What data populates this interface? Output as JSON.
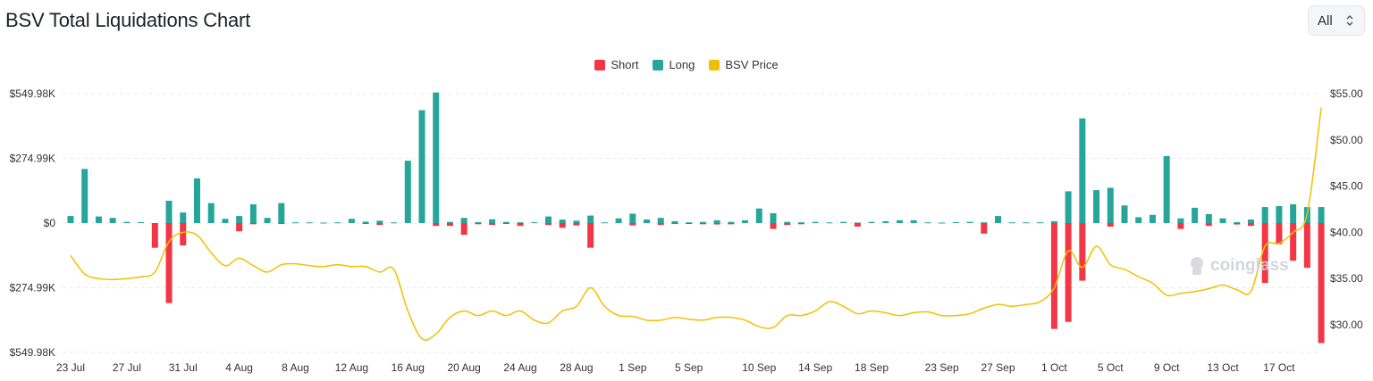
{
  "header": {
    "title": "BSV Total Liquidations Chart",
    "range_value": "All"
  },
  "legend": [
    {
      "label": "Short",
      "color": "#f23645"
    },
    {
      "label": "Long",
      "color": "#26a69a"
    },
    {
      "label": "BSV Price",
      "color": "#f0c000"
    }
  ],
  "watermark": "coinglass",
  "chart_data": {
    "type": "bar",
    "title": "BSV Total Liquidations Chart",
    "y_left": {
      "ticks": [
        "$549.98K",
        "$274.99K",
        "$0",
        "$274.99K",
        "$549.98K"
      ],
      "ylim": [
        -549980,
        549980
      ]
    },
    "y_right": {
      "ticks": [
        "$55.00",
        "$50.00",
        "$45.00",
        "$40.00",
        "$35.00",
        "$30.00"
      ],
      "ylim": [
        27,
        55
      ]
    },
    "x_ticks": [
      {
        "label": "23 Jul",
        "day": 0
      },
      {
        "label": "27 Jul",
        "day": 4
      },
      {
        "label": "31 Jul",
        "day": 8
      },
      {
        "label": "4 Aug",
        "day": 12
      },
      {
        "label": "8 Aug",
        "day": 16
      },
      {
        "label": "12 Aug",
        "day": 20
      },
      {
        "label": "16 Aug",
        "day": 24
      },
      {
        "label": "20 Aug",
        "day": 28
      },
      {
        "label": "24 Aug",
        "day": 32
      },
      {
        "label": "28 Aug",
        "day": 36
      },
      {
        "label": "1 Sep",
        "day": 40
      },
      {
        "label": "5 Sep",
        "day": 44
      },
      {
        "label": "10 Sep",
        "day": 49
      },
      {
        "label": "14 Sep",
        "day": 53
      },
      {
        "label": "18 Sep",
        "day": 57
      },
      {
        "label": "23 Sep",
        "day": 62
      },
      {
        "label": "27 Sep",
        "day": 66
      },
      {
        "label": "1 Oct",
        "day": 70
      },
      {
        "label": "5 Oct",
        "day": 74
      },
      {
        "label": "9 Oct",
        "day": 78
      },
      {
        "label": "13 Oct",
        "day": 82
      },
      {
        "label": "17 Oct",
        "day": 86
      }
    ],
    "series": [
      {
        "name": "Long",
        "color": "#26a69a",
        "points": [
          [
            0,
            30000
          ],
          [
            1,
            230000
          ],
          [
            2,
            28000
          ],
          [
            3,
            22000
          ],
          [
            4,
            5000
          ],
          [
            5,
            4000
          ],
          [
            6,
            0
          ],
          [
            7,
            95000
          ],
          [
            8,
            45000
          ],
          [
            9,
            190000
          ],
          [
            10,
            85000
          ],
          [
            11,
            18000
          ],
          [
            12,
            30000
          ],
          [
            13,
            80000
          ],
          [
            14,
            22000
          ],
          [
            15,
            85000
          ],
          [
            16,
            3000
          ],
          [
            17,
            3000
          ],
          [
            18,
            2000
          ],
          [
            19,
            3000
          ],
          [
            20,
            18000
          ],
          [
            21,
            6000
          ],
          [
            22,
            10000
          ],
          [
            23,
            3000
          ],
          [
            24,
            265000
          ],
          [
            25,
            480000
          ],
          [
            26,
            555000
          ],
          [
            27,
            5000
          ],
          [
            28,
            22000
          ],
          [
            29,
            4000
          ],
          [
            30,
            16000
          ],
          [
            31,
            5000
          ],
          [
            32,
            3000
          ],
          [
            33,
            4000
          ],
          [
            34,
            28000
          ],
          [
            35,
            15000
          ],
          [
            36,
            10000
          ],
          [
            37,
            32000
          ],
          [
            38,
            3000
          ],
          [
            39,
            20000
          ],
          [
            40,
            40000
          ],
          [
            41,
            15000
          ],
          [
            42,
            22000
          ],
          [
            43,
            8000
          ],
          [
            44,
            3000
          ],
          [
            45,
            5000
          ],
          [
            46,
            12000
          ],
          [
            47,
            5000
          ],
          [
            48,
            12000
          ],
          [
            49,
            62000
          ],
          [
            50,
            42000
          ],
          [
            51,
            5000
          ],
          [
            52,
            3000
          ],
          [
            53,
            5000
          ],
          [
            54,
            3000
          ],
          [
            55,
            5000
          ],
          [
            56,
            2000
          ],
          [
            57,
            5000
          ],
          [
            58,
            8000
          ],
          [
            59,
            12000
          ],
          [
            60,
            12000
          ],
          [
            61,
            3000
          ],
          [
            62,
            2000
          ],
          [
            63,
            4000
          ],
          [
            64,
            5000
          ],
          [
            65,
            3000
          ],
          [
            66,
            30000
          ],
          [
            67,
            3000
          ],
          [
            68,
            3000
          ],
          [
            69,
            3000
          ],
          [
            70,
            8000
          ],
          [
            71,
            135000
          ],
          [
            72,
            445000
          ],
          [
            73,
            140000
          ],
          [
            74,
            150000
          ],
          [
            75,
            75000
          ],
          [
            76,
            25000
          ],
          [
            77,
            35000
          ],
          [
            78,
            285000
          ],
          [
            79,
            20000
          ],
          [
            80,
            65000
          ],
          [
            81,
            38000
          ],
          [
            82,
            20000
          ],
          [
            83,
            4000
          ],
          [
            84,
            15000
          ],
          [
            85,
            68000
          ],
          [
            86,
            72000
          ],
          [
            87,
            80000
          ],
          [
            88,
            68000
          ],
          [
            89,
            68000
          ]
        ]
      },
      {
        "name": "Short",
        "color": "#f23645",
        "points": [
          [
            0,
            0
          ],
          [
            1,
            0
          ],
          [
            2,
            0
          ],
          [
            3,
            0
          ],
          [
            4,
            0
          ],
          [
            5,
            0
          ],
          [
            6,
            105000
          ],
          [
            7,
            340000
          ],
          [
            8,
            95000
          ],
          [
            9,
            0
          ],
          [
            10,
            0
          ],
          [
            11,
            0
          ],
          [
            12,
            35000
          ],
          [
            13,
            5000
          ],
          [
            14,
            0
          ],
          [
            15,
            3000
          ],
          [
            16,
            0
          ],
          [
            17,
            0
          ],
          [
            18,
            0
          ],
          [
            19,
            0
          ],
          [
            20,
            0
          ],
          [
            21,
            3000
          ],
          [
            22,
            8000
          ],
          [
            23,
            0
          ],
          [
            24,
            0
          ],
          [
            25,
            0
          ],
          [
            26,
            12000
          ],
          [
            27,
            12000
          ],
          [
            28,
            50000
          ],
          [
            29,
            5000
          ],
          [
            30,
            8000
          ],
          [
            31,
            3000
          ],
          [
            32,
            12000
          ],
          [
            33,
            0
          ],
          [
            34,
            8000
          ],
          [
            35,
            20000
          ],
          [
            36,
            10000
          ],
          [
            37,
            105000
          ],
          [
            38,
            0
          ],
          [
            39,
            0
          ],
          [
            40,
            10000
          ],
          [
            41,
            0
          ],
          [
            42,
            8000
          ],
          [
            43,
            4000
          ],
          [
            44,
            3000
          ],
          [
            45,
            5000
          ],
          [
            46,
            6000
          ],
          [
            47,
            5000
          ],
          [
            48,
            0
          ],
          [
            49,
            0
          ],
          [
            50,
            25000
          ],
          [
            51,
            8000
          ],
          [
            52,
            5000
          ],
          [
            53,
            0
          ],
          [
            54,
            0
          ],
          [
            55,
            0
          ],
          [
            56,
            15000
          ],
          [
            57,
            0
          ],
          [
            58,
            0
          ],
          [
            59,
            0
          ],
          [
            60,
            0
          ],
          [
            61,
            0
          ],
          [
            62,
            0
          ],
          [
            63,
            0
          ],
          [
            64,
            0
          ],
          [
            65,
            45000
          ],
          [
            66,
            0
          ],
          [
            67,
            0
          ],
          [
            68,
            0
          ],
          [
            69,
            0
          ],
          [
            70,
            450000
          ],
          [
            71,
            420000
          ],
          [
            72,
            245000
          ],
          [
            73,
            0
          ],
          [
            74,
            15000
          ],
          [
            75,
            0
          ],
          [
            76,
            0
          ],
          [
            77,
            0
          ],
          [
            78,
            0
          ],
          [
            79,
            25000
          ],
          [
            80,
            0
          ],
          [
            81,
            12000
          ],
          [
            82,
            0
          ],
          [
            83,
            6000
          ],
          [
            84,
            12000
          ],
          [
            85,
            255000
          ],
          [
            86,
            90000
          ],
          [
            87,
            160000
          ],
          [
            88,
            190000
          ],
          [
            89,
            510000
          ]
        ]
      },
      {
        "name": "BSV Price",
        "color": "#f0c000",
        "points": [
          [
            0,
            37.5
          ],
          [
            1,
            35.5
          ],
          [
            2,
            35
          ],
          [
            3,
            34.9
          ],
          [
            4,
            35
          ],
          [
            5,
            35.2
          ],
          [
            6,
            35.7
          ],
          [
            7,
            39
          ],
          [
            8,
            40
          ],
          [
            9,
            39.7
          ],
          [
            10,
            37.8
          ],
          [
            11,
            36.4
          ],
          [
            12,
            37.2
          ],
          [
            13,
            36.4
          ],
          [
            14,
            35.7
          ],
          [
            15,
            36.5
          ],
          [
            16,
            36.6
          ],
          [
            17,
            36.4
          ],
          [
            18,
            36.3
          ],
          [
            19,
            36.5
          ],
          [
            20,
            36.3
          ],
          [
            21,
            36.3
          ],
          [
            22,
            35.7
          ],
          [
            23,
            36
          ],
          [
            24,
            31.5
          ],
          [
            25,
            28.5
          ],
          [
            26,
            29
          ],
          [
            27,
            30.8
          ],
          [
            28,
            31.5
          ],
          [
            29,
            31
          ],
          [
            30,
            31.5
          ],
          [
            31,
            31
          ],
          [
            32,
            31.5
          ],
          [
            33,
            30.5
          ],
          [
            34,
            30.2
          ],
          [
            35,
            31.5
          ],
          [
            36,
            32
          ],
          [
            37,
            34
          ],
          [
            38,
            32
          ],
          [
            39,
            31
          ],
          [
            40,
            30.9
          ],
          [
            41,
            30.5
          ],
          [
            42,
            30.5
          ],
          [
            43,
            30.8
          ],
          [
            44,
            30.6
          ],
          [
            45,
            30.5
          ],
          [
            46,
            30.8
          ],
          [
            47,
            30.8
          ],
          [
            48,
            30.5
          ],
          [
            49,
            29.8
          ],
          [
            50,
            29.7
          ],
          [
            51,
            31
          ],
          [
            52,
            31
          ],
          [
            53,
            31.5
          ],
          [
            54,
            32.5
          ],
          [
            55,
            32
          ],
          [
            56,
            31.2
          ],
          [
            57,
            31.5
          ],
          [
            58,
            31.3
          ],
          [
            59,
            31
          ],
          [
            60,
            31.3
          ],
          [
            61,
            31.4
          ],
          [
            62,
            31
          ],
          [
            63,
            31
          ],
          [
            64,
            31.2
          ],
          [
            65,
            31.8
          ],
          [
            66,
            32.2
          ],
          [
            67,
            32
          ],
          [
            68,
            32.2
          ],
          [
            69,
            32.5
          ],
          [
            70,
            34
          ],
          [
            71,
            38
          ],
          [
            72,
            36.2
          ],
          [
            73,
            38.5
          ],
          [
            74,
            36.5
          ],
          [
            75,
            36
          ],
          [
            76,
            35.2
          ],
          [
            77,
            34.5
          ],
          [
            78,
            33.2
          ],
          [
            79,
            33.4
          ],
          [
            80,
            33.6
          ],
          [
            81,
            33.9
          ],
          [
            82,
            34.3
          ],
          [
            83,
            33.8
          ],
          [
            84,
            33.6
          ],
          [
            85,
            38.5
          ],
          [
            86,
            38.8
          ],
          [
            87,
            40
          ],
          [
            88,
            42
          ],
          [
            89,
            53.5
          ]
        ]
      }
    ]
  }
}
